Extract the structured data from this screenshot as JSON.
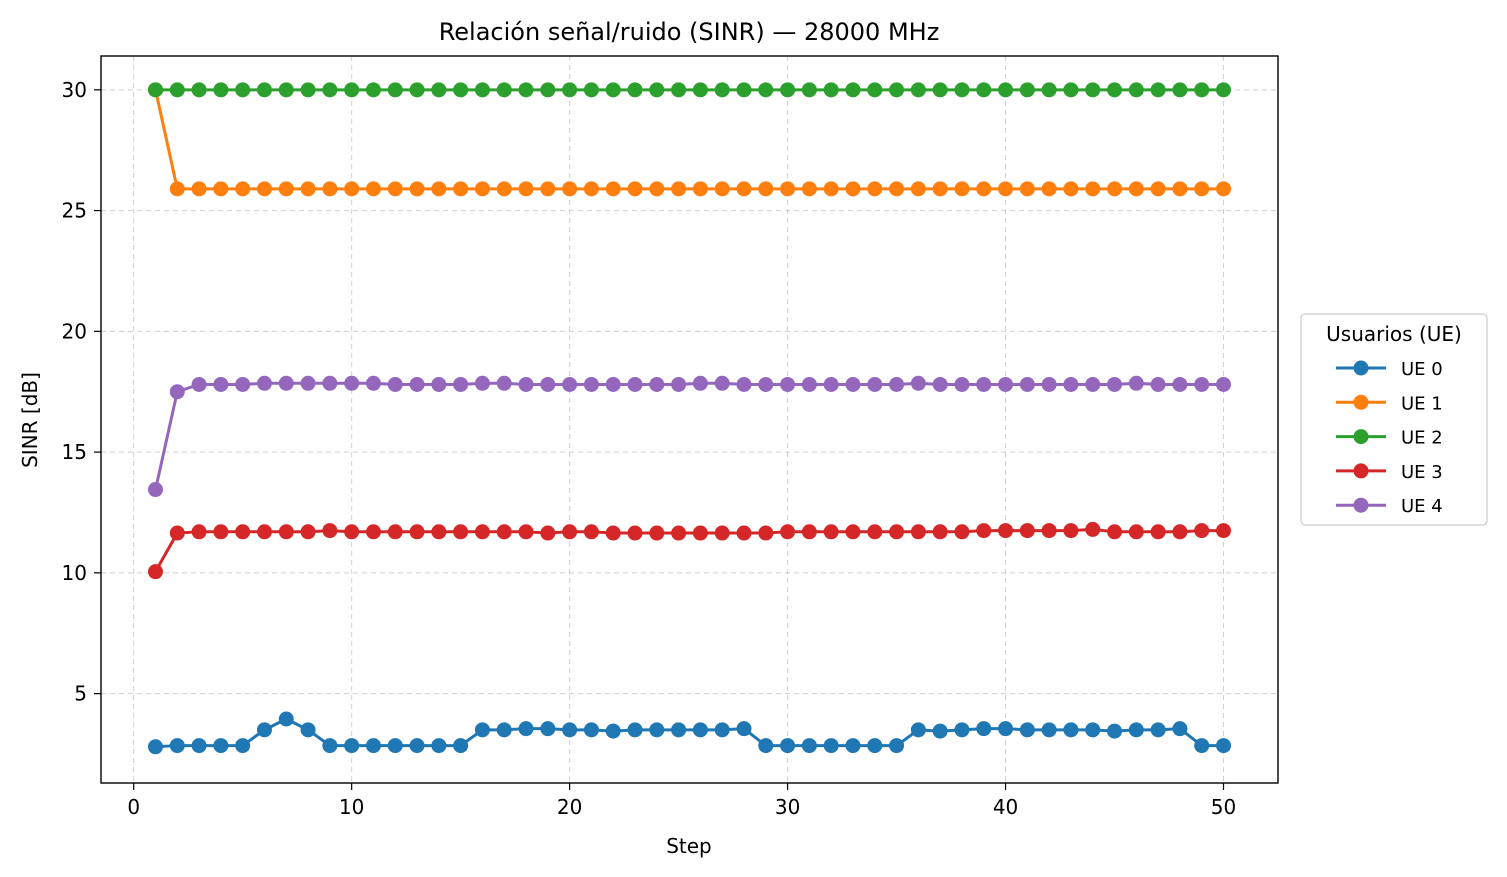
{
  "chart_data": {
    "type": "line",
    "title": "Relación señal/ruido (SINR) — 28000 MHz",
    "xlabel": "Step",
    "ylabel": "SINR [dB]",
    "xlim": [
      -1.5,
      52.5
    ],
    "ylim": [
      1.3,
      31.4
    ],
    "xticks": [
      0,
      10,
      20,
      30,
      40,
      50
    ],
    "yticks": [
      5,
      10,
      15,
      20,
      25,
      30
    ],
    "grid": true,
    "legend": {
      "title": "Usuarios (UE)",
      "placement": "outside-right"
    },
    "x": [
      1,
      2,
      3,
      4,
      5,
      6,
      7,
      8,
      9,
      10,
      11,
      12,
      13,
      14,
      15,
      16,
      17,
      18,
      19,
      20,
      21,
      22,
      23,
      24,
      25,
      26,
      27,
      28,
      29,
      30,
      31,
      32,
      33,
      34,
      35,
      36,
      37,
      38,
      39,
      40,
      41,
      42,
      43,
      44,
      45,
      46,
      47,
      48,
      49,
      50
    ],
    "series": [
      {
        "name": "UE 0",
        "color": "#1f77b4",
        "values": [
          2.8,
          2.85,
          2.85,
          2.85,
          2.85,
          3.5,
          3.95,
          3.5,
          2.85,
          2.85,
          2.85,
          2.85,
          2.85,
          2.85,
          2.85,
          3.5,
          3.5,
          3.55,
          3.55,
          3.5,
          3.5,
          3.45,
          3.5,
          3.5,
          3.5,
          3.5,
          3.5,
          3.55,
          2.85,
          2.85,
          2.85,
          2.85,
          2.85,
          2.85,
          2.85,
          3.5,
          3.45,
          3.5,
          3.55,
          3.55,
          3.5,
          3.5,
          3.5,
          3.5,
          3.45,
          3.5,
          3.5,
          3.55,
          2.85,
          2.85
        ]
      },
      {
        "name": "UE 1",
        "color": "#ff7f0e",
        "values": [
          30.0,
          25.9,
          25.9,
          25.9,
          25.9,
          25.9,
          25.9,
          25.9,
          25.9,
          25.9,
          25.9,
          25.9,
          25.9,
          25.9,
          25.9,
          25.9,
          25.9,
          25.9,
          25.9,
          25.9,
          25.9,
          25.9,
          25.9,
          25.9,
          25.9,
          25.9,
          25.9,
          25.9,
          25.9,
          25.9,
          25.9,
          25.9,
          25.9,
          25.9,
          25.9,
          25.9,
          25.9,
          25.9,
          25.9,
          25.9,
          25.9,
          25.9,
          25.9,
          25.9,
          25.9,
          25.9,
          25.9,
          25.9,
          25.9,
          25.9
        ]
      },
      {
        "name": "UE 2",
        "color": "#2ca02c",
        "values": [
          30.0,
          30.0,
          30.0,
          30.0,
          30.0,
          30.0,
          30.0,
          30.0,
          30.0,
          30.0,
          30.0,
          30.0,
          30.0,
          30.0,
          30.0,
          30.0,
          30.0,
          30.0,
          30.0,
          30.0,
          30.0,
          30.0,
          30.0,
          30.0,
          30.0,
          30.0,
          30.0,
          30.0,
          30.0,
          30.0,
          30.0,
          30.0,
          30.0,
          30.0,
          30.0,
          30.0,
          30.0,
          30.0,
          30.0,
          30.0,
          30.0,
          30.0,
          30.0,
          30.0,
          30.0,
          30.0,
          30.0,
          30.0,
          30.0,
          30.0
        ]
      },
      {
        "name": "UE 3",
        "color": "#d62728",
        "values": [
          10.05,
          11.65,
          11.7,
          11.7,
          11.7,
          11.7,
          11.7,
          11.7,
          11.75,
          11.7,
          11.7,
          11.7,
          11.7,
          11.7,
          11.7,
          11.7,
          11.7,
          11.7,
          11.65,
          11.7,
          11.7,
          11.65,
          11.65,
          11.65,
          11.65,
          11.65,
          11.65,
          11.65,
          11.65,
          11.7,
          11.7,
          11.7,
          11.7,
          11.7,
          11.7,
          11.7,
          11.7,
          11.7,
          11.75,
          11.75,
          11.75,
          11.75,
          11.75,
          11.8,
          11.7,
          11.7,
          11.7,
          11.7,
          11.75,
          11.75
        ]
      },
      {
        "name": "UE 4",
        "color": "#9467bd",
        "values": [
          13.45,
          17.5,
          17.8,
          17.8,
          17.8,
          17.85,
          17.85,
          17.85,
          17.85,
          17.85,
          17.85,
          17.8,
          17.8,
          17.8,
          17.8,
          17.85,
          17.85,
          17.8,
          17.8,
          17.8,
          17.8,
          17.8,
          17.8,
          17.8,
          17.8,
          17.85,
          17.85,
          17.8,
          17.8,
          17.8,
          17.8,
          17.8,
          17.8,
          17.8,
          17.8,
          17.85,
          17.8,
          17.8,
          17.8,
          17.8,
          17.8,
          17.8,
          17.8,
          17.8,
          17.8,
          17.85,
          17.8,
          17.8,
          17.8,
          17.8
        ]
      }
    ]
  }
}
